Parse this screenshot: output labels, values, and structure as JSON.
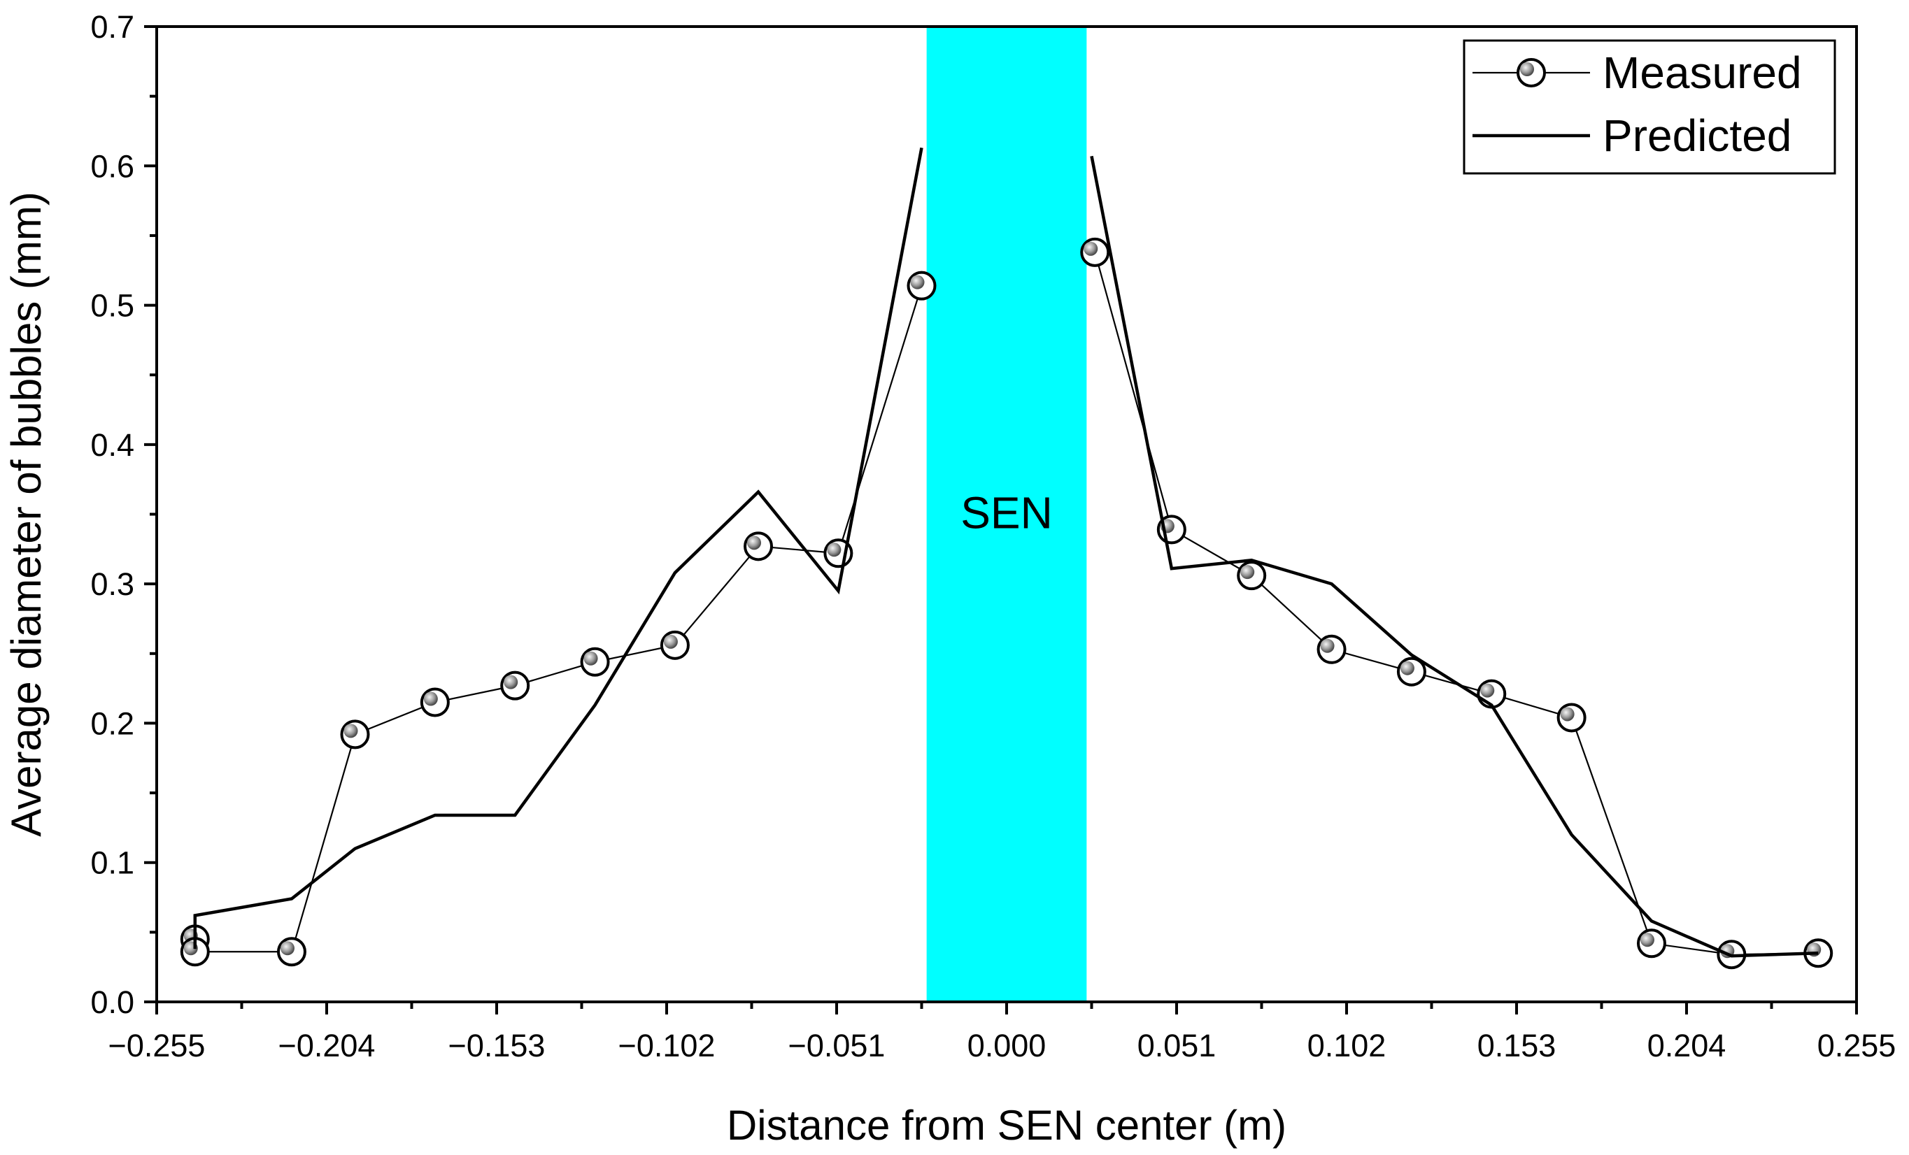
{
  "chart_data": {
    "type": "line",
    "xlabel": "Distance from SEN center (m)",
    "ylabel": "Average diameter of bubbles (mm)",
    "xlim": [
      -0.255,
      0.255
    ],
    "ylim": [
      0,
      0.7
    ],
    "x_ticks": [
      -0.255,
      -0.204,
      -0.153,
      -0.102,
      -0.051,
      0.0,
      0.051,
      0.102,
      0.153,
      0.204,
      0.255
    ],
    "x_tick_labels": [
      "−0.255",
      "−0.204",
      "−0.153",
      "−0.102",
      "−0.051",
      "0.000",
      "0.051",
      "0.102",
      "0.153",
      "0.204",
      "0.255"
    ],
    "y_ticks": [
      0,
      0.1,
      0.2,
      0.3,
      0.4,
      0.5,
      0.6,
      0.7
    ],
    "y_tick_labels": [
      "0.0",
      "0.1",
      "0.2",
      "0.3",
      "0.4",
      "0.5",
      "0.6",
      "0.7"
    ],
    "shaded_region": {
      "label": "SEN",
      "x_range": [
        -0.024,
        0.024
      ],
      "color": "#00FFFF"
    },
    "legend": {
      "position": "top-right",
      "entries": [
        "Measured",
        "Predicted"
      ]
    },
    "series": [
      {
        "name": "Measured",
        "style": "line-with-markers",
        "segments": [
          {
            "x": [
              -0.2435,
              -0.2435,
              -0.2145,
              -0.1955,
              -0.1715,
              -0.1475,
              -0.1235,
              -0.0995,
              -0.0745,
              -0.0505,
              -0.0255
            ],
            "y": [
              0.045,
              0.036,
              0.036,
              0.192,
              0.215,
              0.227,
              0.244,
              0.256,
              0.327,
              0.322,
              0.514
            ]
          },
          {
            "x": [
              0.0265,
              0.0495,
              0.0735,
              0.0975,
              0.1215,
              0.1455,
              0.1695,
              0.1935,
              0.2175,
              0.2435
            ],
            "y": [
              0.538,
              0.339,
              0.306,
              0.253,
              0.237,
              0.221,
              0.204,
              0.042,
              0.034,
              0.035
            ]
          }
        ]
      },
      {
        "name": "Predicted",
        "style": "line",
        "segments": [
          {
            "x": [
              -0.2435,
              -0.2435,
              -0.2145,
              -0.1955,
              -0.1715,
              -0.1475,
              -0.1235,
              -0.0995,
              -0.0745,
              -0.0505,
              -0.0255
            ],
            "y": [
              0.038,
              0.062,
              0.074,
              0.11,
              0.134,
              0.134,
              0.213,
              0.308,
              0.366,
              0.295,
              0.613
            ]
          },
          {
            "x": [
              0.0255,
              0.0495,
              0.0735,
              0.0975,
              0.1215,
              0.1455,
              0.1695,
              0.1935,
              0.2175,
              0.2435
            ],
            "y": [
              0.607,
              0.311,
              0.317,
              0.3,
              0.249,
              0.213,
              0.12,
              0.058,
              0.033,
              0.035
            ]
          }
        ]
      }
    ]
  }
}
